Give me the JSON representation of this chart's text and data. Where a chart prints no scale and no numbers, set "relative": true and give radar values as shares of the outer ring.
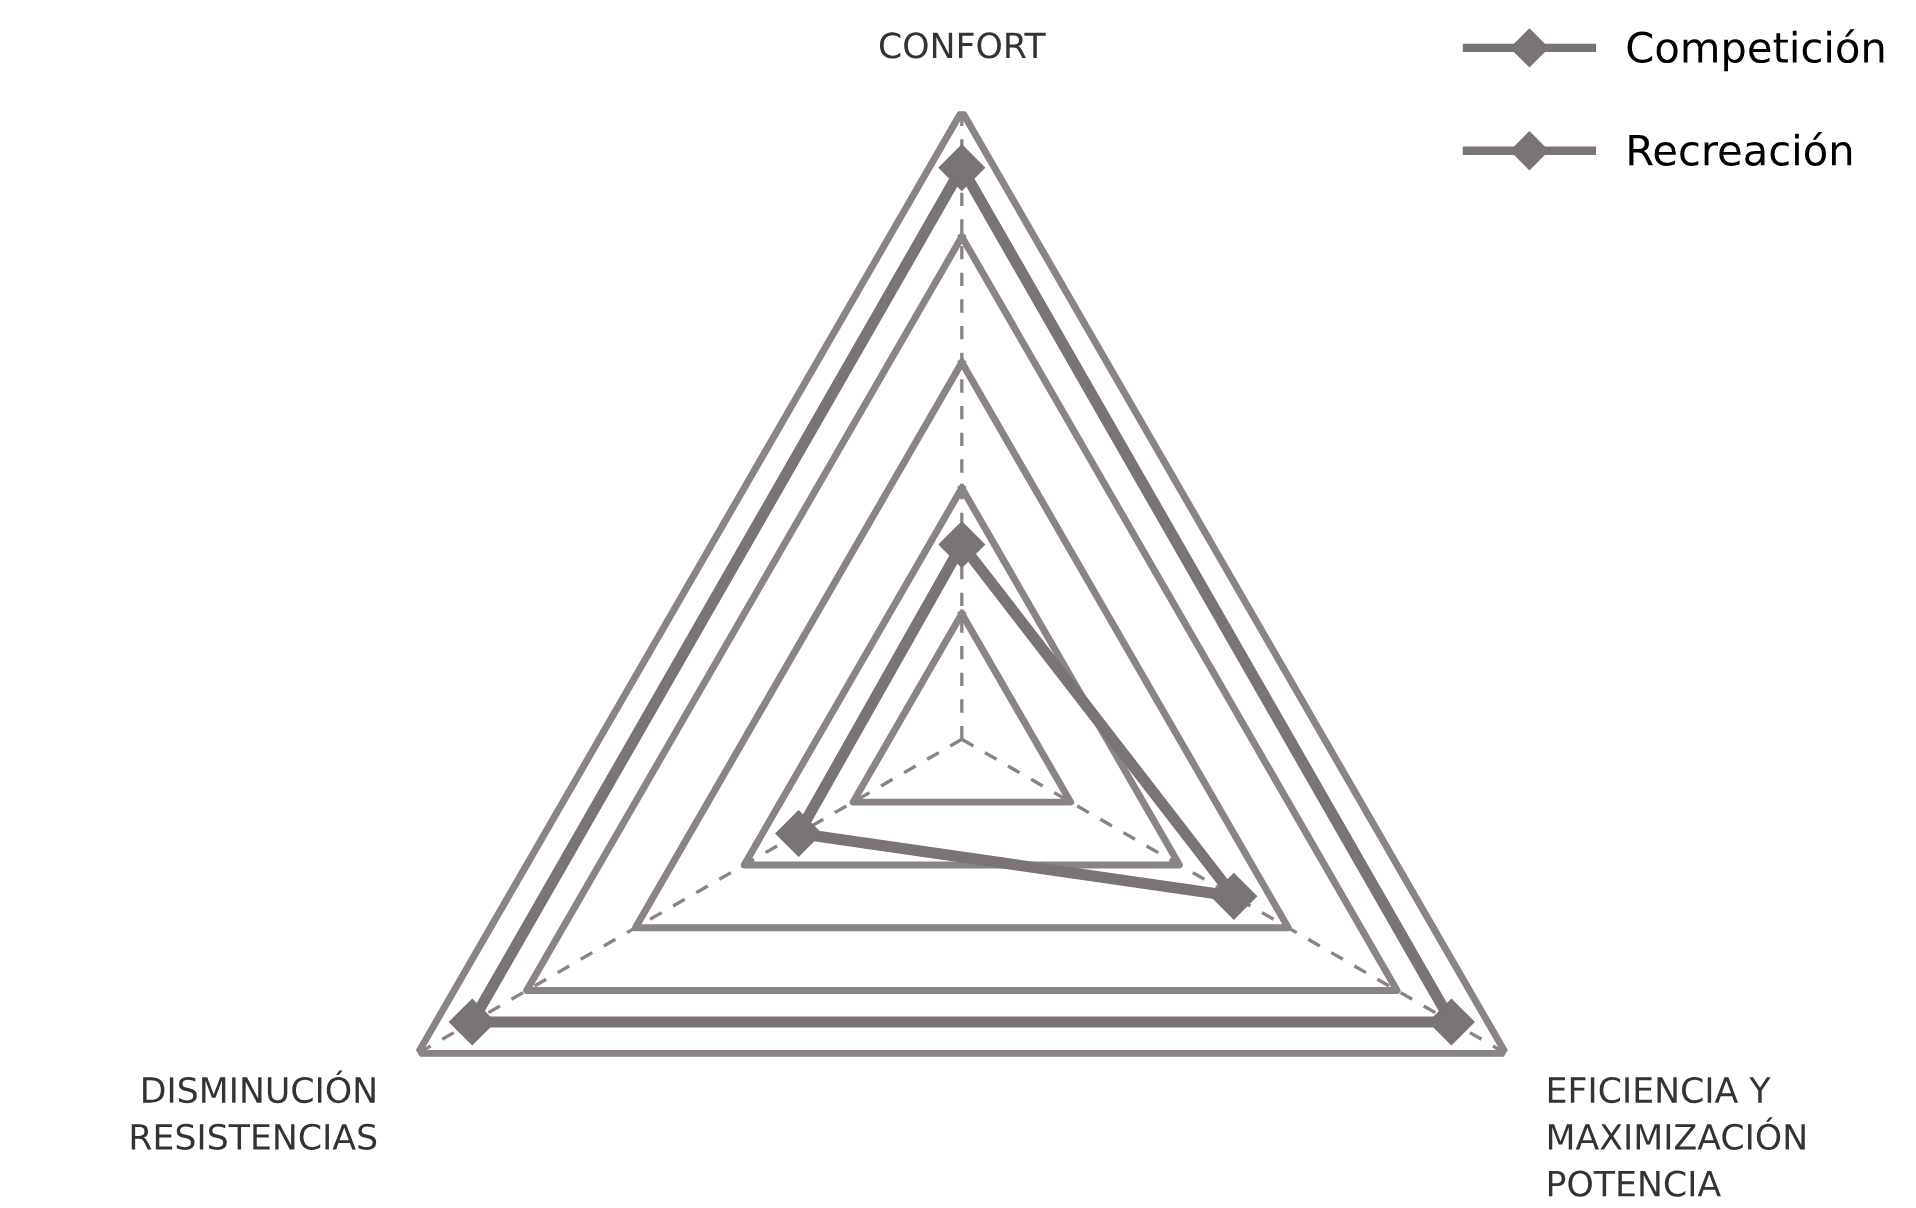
{
  "chart_data": {
    "type": "radar",
    "relative": true,
    "grid": true,
    "legend": "top right",
    "marker": "diamond",
    "line_style": "solid",
    "categories": [
      "CONFORT",
      "EFICIENCIA Y\nMAXIMIZACIÓN\nPOTENCIA",
      "DISMINUCIÓN\nRESISTENCIAS"
    ],
    "series": [
      {
        "name": "Competición",
        "color": "#7a7474",
        "values": [
          0.91,
          0.9,
          0.9
        ]
      },
      {
        "name": "Recreación",
        "color": "#7a7474",
        "values": [
          0.31,
          0.5,
          0.3
        ]
      }
    ]
  }
}
